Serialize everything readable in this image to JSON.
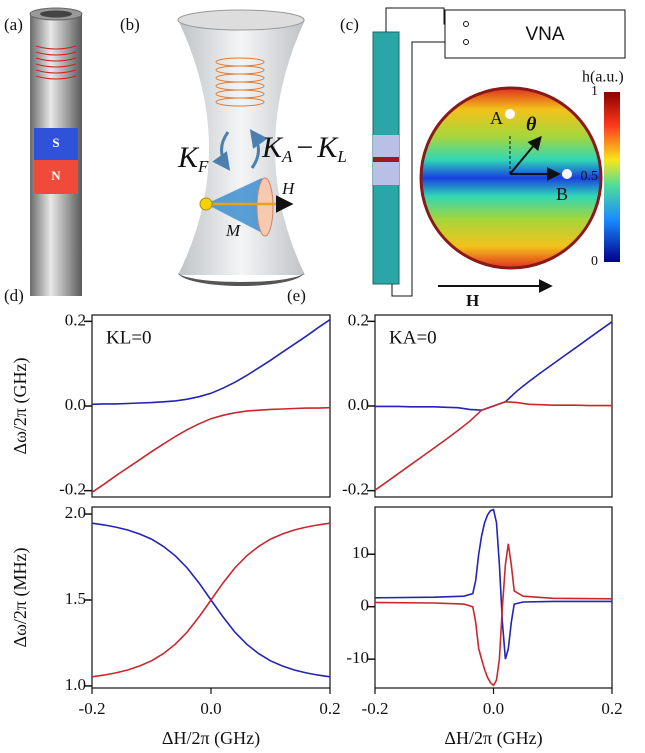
{
  "figure": {
    "panel_a": "(a)",
    "panel_b": "(b)",
    "panel_c": "(c)",
    "magnet_s": "S",
    "magnet_n": "N",
    "kf": {
      "main": "K",
      "sub": "F"
    },
    "kal": {
      "main1": "K",
      "sub1": "A",
      "minus": "−",
      "main2": "K",
      "sub2": "L"
    },
    "field_h": "H",
    "moment_m": "M",
    "vna": "VNA",
    "colorbar_title": "h(a.u.)",
    "colorbar_ticks": [
      1,
      0.5,
      0
    ],
    "point_a": "A",
    "point_b": "B",
    "angle": "θ",
    "field_arrow": "H"
  },
  "chart_data": [
    {
      "type": "line",
      "panel": "(d)",
      "annotation": "KL=0",
      "ylabel": "Δω/2π (GHz)",
      "xlim": [
        -0.2,
        0.2
      ],
      "ylim": [
        -0.215,
        0.215
      ],
      "yticks": [
        -0.2,
        {
          "value": 0,
          "label": "0.0"
        },
        0.2
      ],
      "x": [
        -0.2,
        -0.18,
        -0.16,
        -0.14,
        -0.12,
        -0.1,
        -0.08,
        -0.06,
        -0.04,
        -0.02,
        0,
        0.02,
        0.04,
        0.06,
        0.08,
        0.1,
        0.12,
        0.14,
        0.16,
        0.18,
        0.2
      ],
      "series": [
        {
          "color": "#2323b4",
          "values": [
            0.004,
            0.005,
            0.005,
            0.006,
            0.007,
            0.008,
            0.01,
            0.012,
            0.016,
            0.022,
            0.03,
            0.042,
            0.056,
            0.072,
            0.09,
            0.108,
            0.127,
            0.146,
            0.165,
            0.185,
            0.204
          ]
        },
        {
          "color": "#c8282d",
          "values": [
            -0.204,
            -0.185,
            -0.165,
            -0.146,
            -0.127,
            -0.108,
            -0.09,
            -0.072,
            -0.056,
            -0.042,
            -0.03,
            -0.022,
            -0.016,
            -0.012,
            -0.01,
            -0.008,
            -0.007,
            -0.006,
            -0.005,
            -0.005,
            -0.004
          ]
        }
      ]
    },
    {
      "type": "line",
      "ylabel": "Δω/2π (MHz)",
      "xlabel": "ΔH/2π (GHz)",
      "xlim": [
        -0.2,
        0.2
      ],
      "ylim": [
        0.988,
        2.041
      ],
      "xticks": [
        -0.2,
        {
          "value": 0,
          "label": "0.0"
        },
        0.2
      ],
      "yticks": [
        {
          "value": 1,
          "label": "1.0"
        },
        1.5,
        {
          "value": 2,
          "label": "2.0"
        }
      ],
      "x": [
        -0.2,
        -0.18,
        -0.16,
        -0.14,
        -0.12,
        -0.1,
        -0.08,
        -0.06,
        -0.04,
        -0.02,
        0,
        0.02,
        0.04,
        0.06,
        0.08,
        0.1,
        0.12,
        0.14,
        0.16,
        0.18,
        0.2
      ],
      "series": [
        {
          "color": "#2323b4",
          "values": [
            1.947,
            1.937,
            1.924,
            1.907,
            1.884,
            1.854,
            1.812,
            1.757,
            1.686,
            1.598,
            1.5,
            1.402,
            1.314,
            1.243,
            1.188,
            1.146,
            1.116,
            1.093,
            1.076,
            1.063,
            1.053
          ]
        },
        {
          "color": "#c8282d",
          "values": [
            1.053,
            1.063,
            1.076,
            1.093,
            1.116,
            1.146,
            1.188,
            1.243,
            1.314,
            1.402,
            1.5,
            1.598,
            1.686,
            1.757,
            1.812,
            1.854,
            1.884,
            1.907,
            1.924,
            1.937,
            1.947
          ]
        }
      ]
    },
    {
      "type": "line",
      "panel": "(e)",
      "annotation": "KA=0",
      "xlim": [
        -0.2,
        0.2
      ],
      "ylim": [
        -0.215,
        0.215
      ],
      "yticks": [
        -0.2,
        {
          "value": 0,
          "label": "0.0"
        },
        0.2
      ],
      "x": [
        -0.2,
        -0.18,
        -0.16,
        -0.14,
        -0.12,
        -0.1,
        -0.08,
        -0.06,
        -0.04,
        -0.02,
        0,
        0.02,
        0.04,
        0.06,
        0.08,
        0.1,
        0.12,
        0.14,
        0.16,
        0.18,
        0.2
      ],
      "series": [
        {
          "color": "#2323b4",
          "values": [
            -0.001,
            -0.001,
            -0.001,
            -0.002,
            -0.002,
            -0.002,
            -0.003,
            -0.004,
            -0.008,
            -0.01,
            0,
            0.01,
            0.036,
            0.058,
            0.079,
            0.099,
            0.119,
            0.139,
            0.159,
            0.179,
            0.199
          ]
        },
        {
          "color": "#c8282d",
          "values": [
            -0.199,
            -0.179,
            -0.159,
            -0.139,
            -0.119,
            -0.099,
            -0.079,
            -0.058,
            -0.036,
            -0.01,
            0,
            0.01,
            0.008,
            0.004,
            0.003,
            0.002,
            0.002,
            0.002,
            0.001,
            0.001,
            0.001
          ]
        }
      ]
    },
    {
      "type": "line",
      "xlabel": "ΔH/2π (GHz)",
      "xlim": [
        -0.2,
        0.2
      ],
      "ylim": [
        -15.5,
        19
      ],
      "xticks": [
        -0.2,
        {
          "value": 0,
          "label": "0.0"
        },
        0.2
      ],
      "yticks": [
        -10,
        0,
        10
      ],
      "x": [
        -0.2,
        -0.1,
        -0.05,
        -0.035,
        -0.03,
        -0.025,
        -0.02,
        -0.015,
        -0.01,
        -0.005,
        0,
        0.005,
        0.01,
        0.015,
        0.02,
        0.025,
        0.03,
        0.035,
        0.05,
        0.1,
        0.2
      ],
      "series": [
        {
          "color": "#2323b4",
          "values": [
            1.7,
            1.8,
            2.0,
            2.5,
            5,
            10,
            13.5,
            16,
            17.5,
            18.3,
            18.5,
            16,
            8,
            -3,
            -10,
            -8,
            -3,
            0.5,
            0.9,
            1.0,
            1.0
          ]
        },
        {
          "color": "#c8282d",
          "values": [
            0.8,
            0.7,
            0.5,
            0,
            -3,
            -8,
            -10,
            -12,
            -13.5,
            -14.5,
            -15,
            -14,
            -10,
            0,
            8,
            12,
            8,
            3,
            2,
            1.6,
            1.5
          ]
        }
      ]
    }
  ]
}
